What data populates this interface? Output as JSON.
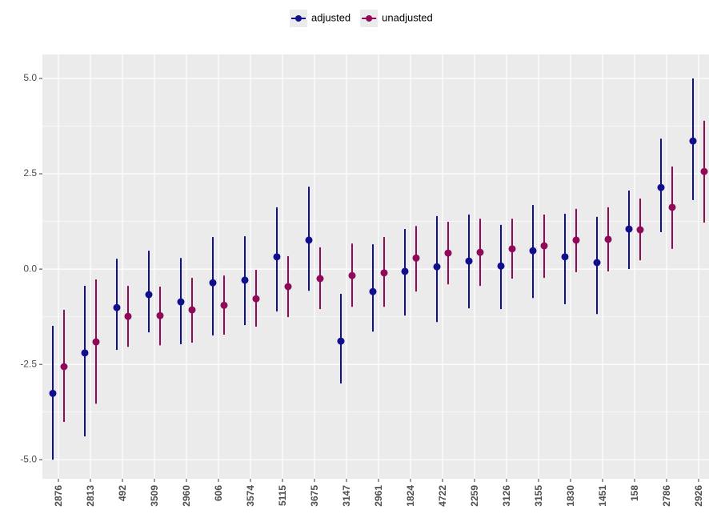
{
  "chart_data": {
    "type": "pointrange",
    "categories": [
      "2876",
      "2813",
      "492",
      "3509",
      "2960",
      "606",
      "3574",
      "5115",
      "3675",
      "3147",
      "2961",
      "1824",
      "4722",
      "2259",
      "3126",
      "3155",
      "1830",
      "1451",
      "158",
      "2786",
      "2926"
    ],
    "series": [
      {
        "name": "adjusted",
        "color": "#10108c",
        "values": [
          -3.26,
          -2.2,
          -1.01,
          -0.67,
          -0.86,
          -0.36,
          -0.29,
          0.32,
          0.76,
          -1.89,
          -0.59,
          -0.06,
          0.06,
          0.21,
          0.08,
          0.48,
          0.32,
          0.17,
          1.05,
          2.14,
          3.36
        ],
        "lower": [
          -5.0,
          -4.39,
          -2.12,
          -1.66,
          -1.97,
          -1.74,
          -1.47,
          -1.11,
          -0.57,
          -3.0,
          -1.64,
          -1.22,
          -1.39,
          -1.03,
          -1.05,
          -0.76,
          -0.92,
          -1.18,
          0.0,
          0.97,
          1.81
        ],
        "upper": [
          -1.49,
          -0.44,
          0.27,
          0.48,
          0.29,
          0.84,
          0.86,
          1.62,
          2.16,
          -0.65,
          0.65,
          1.05,
          1.39,
          1.43,
          1.16,
          1.68,
          1.45,
          1.37,
          2.06,
          3.42,
          5.0
        ]
      },
      {
        "name": "unadjusted",
        "color": "#8f0b5a",
        "values": [
          -2.56,
          -1.91,
          -1.24,
          -1.22,
          -1.07,
          -0.95,
          -0.78,
          -0.46,
          -0.25,
          -0.17,
          -0.1,
          0.29,
          0.42,
          0.44,
          0.53,
          0.61,
          0.76,
          0.78,
          1.03,
          1.62,
          2.56
        ],
        "lower": [
          -4.01,
          -3.53,
          -2.04,
          -2.0,
          -1.93,
          -1.72,
          -1.51,
          -1.26,
          -1.05,
          -0.99,
          -0.99,
          -0.59,
          -0.4,
          -0.44,
          -0.25,
          -0.23,
          -0.08,
          -0.06,
          0.23,
          0.53,
          1.22
        ],
        "upper": [
          -1.07,
          -0.27,
          -0.44,
          -0.46,
          -0.23,
          -0.17,
          -0.02,
          0.34,
          0.57,
          0.67,
          0.84,
          1.13,
          1.24,
          1.32,
          1.32,
          1.43,
          1.58,
          1.62,
          1.85,
          2.69,
          3.89
        ]
      }
    ],
    "ylim": [
      -5.5,
      5.63
    ],
    "yticks": [
      {
        "value": -5,
        "label": "-5.0"
      },
      {
        "value": -2.5,
        "label": "-2.5"
      },
      {
        "value": 0,
        "label": "0.0"
      },
      {
        "value": 2.5,
        "label": "2.5"
      },
      {
        "value": 5,
        "label": "5.0"
      }
    ],
    "grid": true,
    "legend": "top"
  }
}
